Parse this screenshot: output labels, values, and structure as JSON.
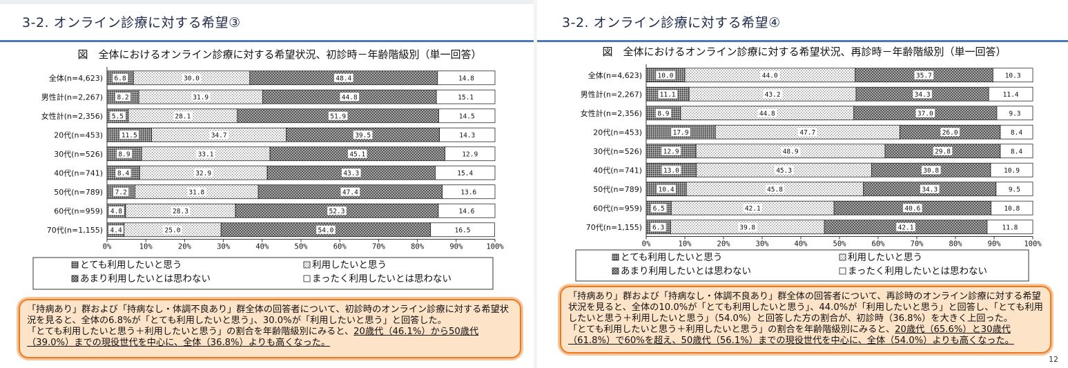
{
  "left": {
    "slide_title": "3-2. オンライン診療に対する希望③",
    "callout": {
      "line1": "「持病あり」群および「持病なし・体調不良あり」群全体の回答者について、初診時のオンライン診療に対する希望状況を見ると、全体の6.8%が「とても利用したいと思う」、30.0%が「利用したいと思う」と回答した。",
      "line2_plain": "「とても利用したいと思う＋利用したいと思う」の割合を年齢階級別にみると、",
      "line2_underlined": "20歳代（46.1%）から50歳代（39.0%）までの現役世代を中心に、全体（36.8%）よりも高くなった。"
    }
  },
  "right": {
    "slide_title": "3-2. オンライン診療に対する希望④",
    "callout": {
      "line1": "「持病あり」群および「持病なし・体調不良あり」群全体の回答者について、再診時のオンライン診療に対する希望状況を見ると、全体の10.0%が「とても利用したいと思う」、44.0%が「利用したいと思う」と回答し、「とても利用したいと思う＋利用したいと思う」（54.0%）と回答した方の割合が、初診時（36.8%）を大きく上回った。",
      "line2_plain": "「とても利用したいと思う＋利用したいと思う」の割合を年齢階級別にみると、",
      "line2_underlined": "20歳代（65.6%）と30歳代（61.8%）で60%を超え、50歳代（56.1%）までの現役世代を中心に、全体（54.0%）よりも高くなった。"
    },
    "page_number": "12"
  },
  "chart_data": [
    {
      "type": "bar",
      "orientation": "horizontal",
      "stacked": true,
      "title": "図　全体におけるオンライン診療に対する希望状況、初診時－年齢階級別（単一回答）",
      "categories": [
        "全体(n=4,623)",
        "男性計(n=2,267)",
        "女性計(n=2,356)",
        "20代(n=453)",
        "30代(n=526)",
        "40代(n=741)",
        "50代(n=789)",
        "60代(n=959)",
        "70代(n=1,155)"
      ],
      "series": [
        {
          "name": "とても利用したいと思う",
          "pattern": "dark-dotted",
          "values": [
            6.8,
            8.2,
            5.5,
            11.5,
            8.9,
            8.4,
            7.2,
            4.8,
            4.4
          ]
        },
        {
          "name": "利用したいと思う",
          "pattern": "light-dotted",
          "values": [
            30.0,
            31.9,
            28.1,
            34.7,
            33.1,
            32.9,
            31.8,
            28.3,
            25.0
          ]
        },
        {
          "name": "あまり利用したいとは思わない",
          "pattern": "dark-crosshatch",
          "values": [
            48.4,
            44.8,
            51.9,
            39.5,
            45.1,
            43.3,
            47.4,
            52.3,
            54.0
          ]
        },
        {
          "name": "まったく利用したいとは思わない",
          "pattern": "white",
          "values": [
            14.8,
            15.1,
            14.5,
            14.3,
            12.9,
            15.4,
            13.6,
            14.6,
            16.5
          ]
        }
      ],
      "xlim": [
        0,
        100
      ],
      "xticks": [
        "0%",
        "10%",
        "20%",
        "30%",
        "40%",
        "50%",
        "60%",
        "70%",
        "80%",
        "90%",
        "100%"
      ],
      "legend": "bottom"
    },
    {
      "type": "bar",
      "orientation": "horizontal",
      "stacked": true,
      "title": "図　全体におけるオンライン診療に対する希望状況、再診時－年齢階級別（単一回答）",
      "categories": [
        "全体(n=4,623)",
        "男性計(n=2,267)",
        "女性計(n=2,356)",
        "20代(n=453)",
        "30代(n=526)",
        "40代(n=741)",
        "50代(n=789)",
        "60代(n=959)",
        "70代(n=1,155)"
      ],
      "series": [
        {
          "name": "とても利用したいと思う",
          "pattern": "dark-dotted",
          "values": [
            10.0,
            11.1,
            8.9,
            17.9,
            12.9,
            13.0,
            10.4,
            6.5,
            6.3
          ]
        },
        {
          "name": "利用したいと思う",
          "pattern": "light-dotted",
          "values": [
            44.0,
            43.2,
            44.8,
            47.7,
            48.9,
            45.3,
            45.8,
            42.1,
            39.8
          ]
        },
        {
          "name": "あまり利用したいとは思わない",
          "pattern": "dark-crosshatch",
          "values": [
            35.7,
            34.3,
            37.0,
            26.0,
            29.8,
            30.8,
            34.3,
            40.6,
            42.1
          ]
        },
        {
          "name": "まったく利用したいとは思わない",
          "pattern": "white",
          "values": [
            10.3,
            11.4,
            9.3,
            8.4,
            8.4,
            10.9,
            9.5,
            10.8,
            11.8
          ]
        }
      ],
      "xlim": [
        0,
        100
      ],
      "xticks": [
        "0%",
        "10%",
        "20%",
        "30%",
        "40%",
        "50%",
        "60%",
        "70%",
        "80%",
        "90%",
        "100%"
      ],
      "legend": "bottom"
    }
  ]
}
